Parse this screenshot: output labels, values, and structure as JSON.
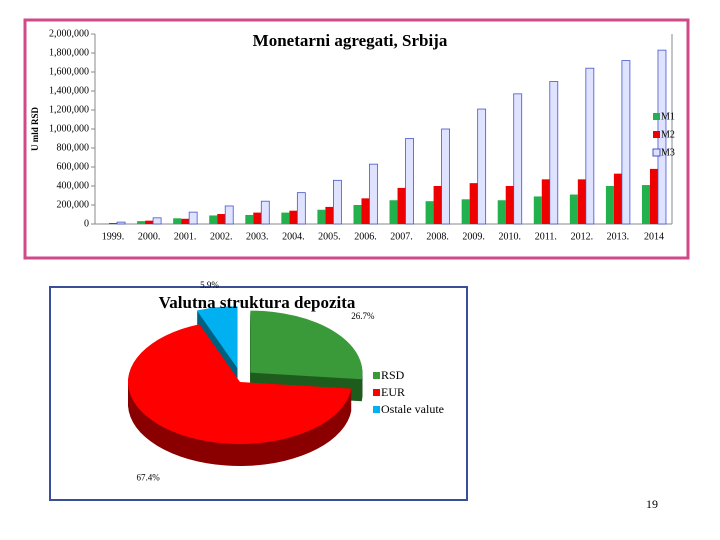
{
  "chart_data": [
    {
      "type": "bar",
      "title": "Monetarni agregati, Srbija",
      "y_label": "U mld RSD",
      "categories": [
        "1999.",
        "2000.",
        "2001.",
        "2002.",
        "2003.",
        "2004.",
        "2005.",
        "2006.",
        "2007.",
        "2008.",
        "2009.",
        "2010.",
        "2011.",
        "2012.",
        "2013.",
        "2014"
      ],
      "series": [
        {
          "name": "M1",
          "color": "#22b14c",
          "values": [
            5000,
            30000,
            60000,
            90000,
            95000,
            120000,
            150000,
            200000,
            250000,
            240000,
            260000,
            250000,
            290000,
            310000,
            400000,
            410000
          ]
        },
        {
          "name": "M2",
          "color": "#ee0000",
          "values": [
            10000,
            35000,
            55000,
            105000,
            120000,
            140000,
            180000,
            270000,
            380000,
            400000,
            430000,
            400000,
            470000,
            470000,
            530000,
            580000
          ]
        },
        {
          "name": "M3",
          "color": "#dfe3ff",
          "values": [
            20000,
            65000,
            125000,
            190000,
            240000,
            330000,
            460000,
            630000,
            900000,
            1000000,
            1210000,
            1370000,
            1500000,
            1640000,
            1720000,
            1830000
          ]
        }
      ],
      "ylim": [
        0,
        2000000
      ],
      "yticks": [
        0,
        {
          "value": 200000,
          "label": "200,000"
        },
        {
          "value": 400000,
          "label": "400,000"
        },
        {
          "value": 600000,
          "label": "600,000"
        },
        {
          "value": 800000,
          "label": "800,000"
        },
        {
          "value": 1000000,
          "label": "1,000,000"
        },
        {
          "value": 1200000,
          "label": "1,200,000"
        },
        {
          "value": 1400000,
          "label": "1,400,000"
        },
        {
          "value": 1600000,
          "label": "1,600,000"
        },
        {
          "value": 1800000,
          "label": "1,800,000"
        },
        {
          "value": 2000000,
          "label": "2,000,000"
        }
      ],
      "grid": false,
      "legend": "right"
    },
    {
      "type": "pie",
      "title": "Valutna struktura depozita",
      "categories": [
        "RSD",
        "EUR",
        "Ostale valute"
      ],
      "values": [
        26.7,
        67.4,
        5.9
      ],
      "value_labels": [
        "26.7%",
        "67.4%",
        "5.9%"
      ],
      "colors": [
        "#3a9a3a",
        "#ff0000",
        "#00b0f0"
      ],
      "legend": "right"
    }
  ],
  "page_number": "19"
}
